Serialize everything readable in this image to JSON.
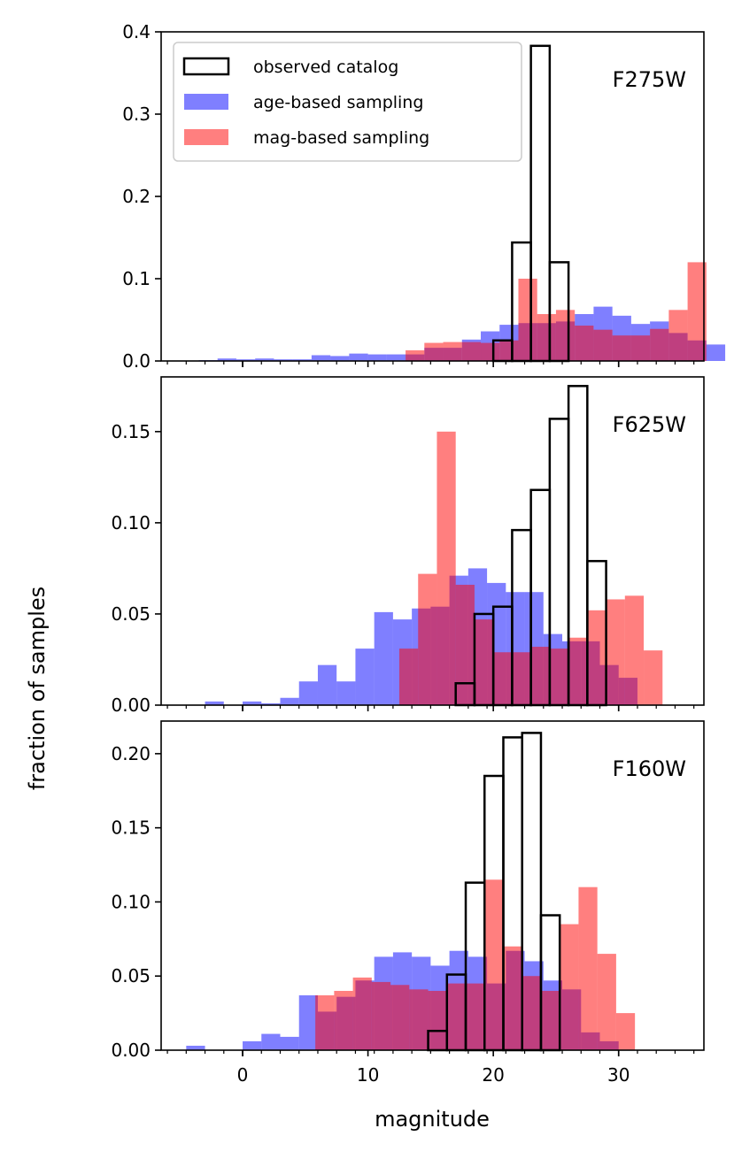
{
  "chart_data": {
    "type": "histogram",
    "figure": {
      "xlabel": "magnitude",
      "ylabel": "fraction of samples",
      "xlim": [
        -6.5,
        36.8
      ],
      "xticks": [
        0,
        10,
        20,
        30
      ],
      "xtick_labels": [
        "0",
        "10",
        "20",
        "30"
      ],
      "minor_tick_step": 1.5
    },
    "legend": {
      "location": "upper-left of top panel",
      "entries": [
        {
          "key": "observed",
          "label": "observed catalog",
          "style": "outline",
          "color": "#000000"
        },
        {
          "key": "age",
          "label": "age-based sampling",
          "style": "fill",
          "color": "#0000ff",
          "alpha": 0.5
        },
        {
          "key": "mag",
          "label": "mag-based sampling",
          "style": "fill",
          "color": "#ff0000",
          "alpha": 0.5
        }
      ]
    },
    "panels": [
      {
        "filter": "F275W",
        "ylim": [
          0,
          0.4
        ],
        "yticks": [
          0,
          0.1,
          0.2,
          0.3,
          0.4
        ],
        "ytick_labels": [
          "0.0",
          "0.1",
          "0.2",
          "0.3",
          "0.4"
        ],
        "series": {
          "age": {
            "bin_start": -3.5,
            "bin_width": 1.5,
            "values": [
              0.001,
              0.003,
              0.002,
              0.003,
              0.002,
              0.002,
              0.007,
              0.006,
              0.009,
              0.008,
              0.008,
              0.008,
              0.016,
              0.016,
              0.026,
              0.036,
              0.044,
              0.046,
              0.046,
              0.048,
              0.057,
              0.066,
              0.055,
              0.045,
              0.048,
              0.034,
              0.025,
              0.02
            ]
          },
          "mag": {
            "bin_start": 13.0,
            "bin_width": 1.5,
            "values": [
              0.013,
              0.022,
              0.023,
              0.023,
              0.022,
              0.025,
              0.1,
              0.057,
              0.062,
              0.043,
              0.038,
              0.031,
              0.031,
              0.039,
              0.062,
              0.12
            ]
          },
          "observed": {
            "bin_start": 20.0,
            "bin_width": 1.5,
            "values": [
              0.025,
              0.144,
              0.383,
              0.12
            ]
          }
        }
      },
      {
        "filter": "F625W",
        "ylim": [
          0,
          0.18
        ],
        "yticks": [
          0,
          0.05,
          0.1,
          0.15
        ],
        "ytick_labels": [
          "0.00",
          "0.05",
          "0.10",
          "0.15"
        ],
        "series": {
          "age": {
            "bin_start": -3.0,
            "bin_width": 1.5,
            "values": [
              0.002,
              0.0,
              0.002,
              0.001,
              0.004,
              0.013,
              0.022,
              0.013,
              0.031,
              0.051,
              0.047,
              0.053,
              0.054,
              0.071,
              0.075,
              0.067,
              0.062,
              0.062,
              0.039,
              0.035,
              0.035,
              0.022,
              0.015
            ]
          },
          "mag": {
            "bin_start": 12.5,
            "bin_width": 1.5,
            "values": [
              0.031,
              0.072,
              0.15,
              0.066,
              0.047,
              0.029,
              0.029,
              0.032,
              0.031,
              0.037,
              0.052,
              0.058,
              0.06,
              0.03
            ]
          },
          "observed": {
            "bin_start": 17.0,
            "bin_width": 1.5,
            "values": [
              0.012,
              0.05,
              0.054,
              0.096,
              0.118,
              0.157,
              0.175,
              0.079
            ]
          }
        }
      },
      {
        "filter": "F160W",
        "ylim": [
          0,
          0.222
        ],
        "yticks": [
          0,
          0.05,
          0.1,
          0.15,
          0.2
        ],
        "ytick_labels": [
          "0.00",
          "0.05",
          "0.10",
          "0.15",
          "0.20"
        ],
        "series": {
          "age": {
            "bin_start": -4.5,
            "bin_width": 1.5,
            "values": [
              0.003,
              0.0,
              0.0,
              0.006,
              0.011,
              0.009,
              0.037,
              0.026,
              0.036,
              0.047,
              0.063,
              0.066,
              0.063,
              0.057,
              0.067,
              0.063,
              0.045,
              0.067,
              0.06,
              0.047,
              0.041,
              0.012,
              0.006
            ]
          },
          "mag": {
            "bin_start": 5.8,
            "bin_width": 1.5,
            "values": [
              0.037,
              0.04,
              0.049,
              0.046,
              0.044,
              0.041,
              0.04,
              0.045,
              0.045,
              0.115,
              0.07,
              0.05,
              0.04,
              0.085,
              0.11,
              0.065,
              0.025
            ]
          },
          "observed": {
            "bin_start": 14.8,
            "bin_width": 1.5,
            "values": [
              0.013,
              0.051,
              0.113,
              0.185,
              0.211,
              0.214,
              0.091
            ]
          }
        }
      }
    ]
  }
}
